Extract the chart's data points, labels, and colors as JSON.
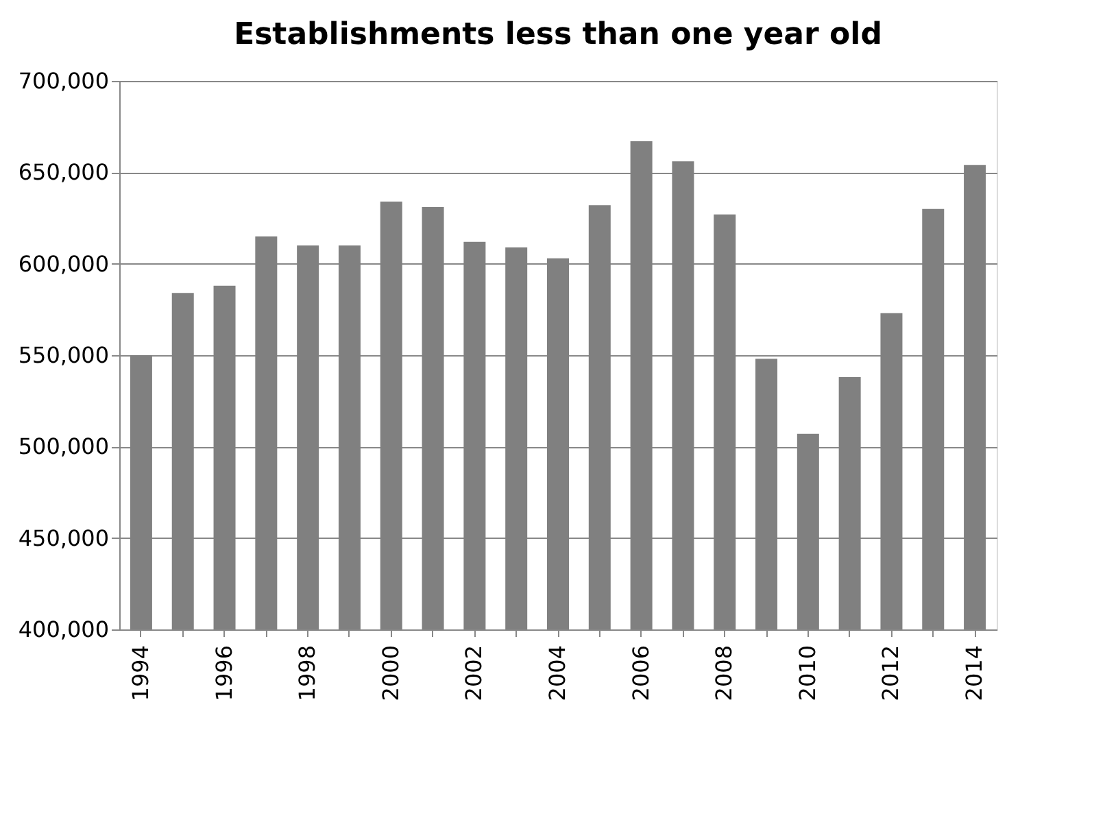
{
  "chart_data": {
    "type": "bar",
    "title": "Establishments less than one year old",
    "categories": [
      "1994",
      null,
      "1996",
      null,
      "1998",
      null,
      "2000",
      null,
      "2002",
      null,
      "2004",
      null,
      "2006",
      null,
      "2008",
      null,
      "2010",
      null,
      "2012",
      null,
      "2014"
    ],
    "values": [
      550000,
      584000,
      588000,
      615000,
      610000,
      610000,
      634000,
      631000,
      612000,
      609000,
      603000,
      632000,
      667000,
      656000,
      627000,
      548000,
      507000,
      538000,
      573000,
      630000,
      654000
    ],
    "color": "#808080",
    "ylim": [
      400000,
      700000
    ],
    "yticks": [
      {
        "value": 400000,
        "label": "400,000"
      },
      {
        "value": 450000,
        "label": "450,000"
      },
      {
        "value": 500000,
        "label": "500,000"
      },
      {
        "value": 550000,
        "label": "550,000"
      },
      {
        "value": 600000,
        "label": "600,000"
      },
      {
        "value": 650000,
        "label": "650,000"
      },
      {
        "value": 700000,
        "label": "700,000"
      }
    ],
    "grid": "y"
  }
}
